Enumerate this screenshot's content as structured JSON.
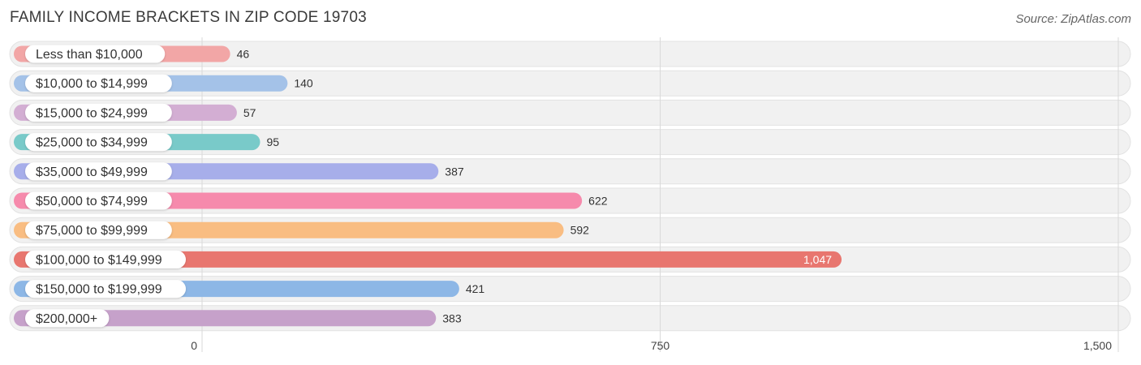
{
  "title": "FAMILY INCOME BRACKETS IN ZIP CODE 19703",
  "source": "Source: ZipAtlas.com",
  "chart_data": {
    "type": "bar",
    "orientation": "horizontal",
    "title": "FAMILY INCOME BRACKETS IN ZIP CODE 19703",
    "xlabel": "",
    "ylabel": "",
    "xlim": [
      0,
      1500
    ],
    "grid": true,
    "categories": [
      "Less than $10,000",
      "$10,000 to $14,999",
      "$15,000 to $24,999",
      "$25,000 to $34,999",
      "$35,000 to $49,999",
      "$50,000 to $74,999",
      "$75,000 to $99,999",
      "$100,000 to $149,999",
      "$150,000 to $199,999",
      "$200,000+"
    ],
    "values": [
      46,
      140,
      57,
      95,
      387,
      622,
      592,
      1047,
      421,
      383
    ],
    "value_labels": [
      "46",
      "140",
      "57",
      "95",
      "387",
      "622",
      "592",
      "1,047",
      "421",
      "383"
    ],
    "colors": [
      "#f2a6a6",
      "#a4c2e8",
      "#d3aed3",
      "#79cac9",
      "#a7aeea",
      "#f68aac",
      "#f9bd82",
      "#e8766f",
      "#8db7e6",
      "#c6a1ca"
    ],
    "ticks": [
      0,
      750,
      1500
    ],
    "tick_labels": [
      "0",
      "750",
      "1,500"
    ]
  }
}
